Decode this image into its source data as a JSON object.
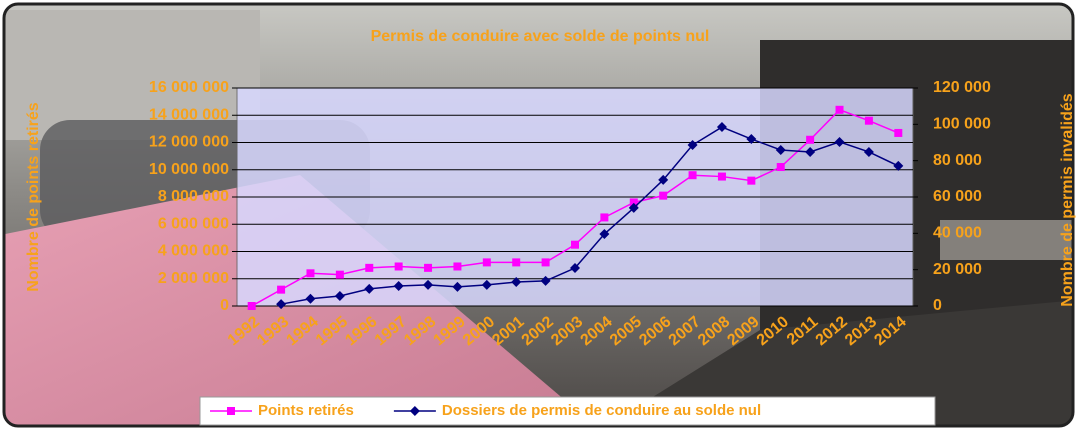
{
  "chart_data": {
    "type": "line",
    "title": "Permis de conduire avec solde de points nul",
    "y_label": "Nombre de points retirés",
    "y2_label": "Nombre de permis invalidés",
    "categories": [
      "1992",
      "1993",
      "1994",
      "1995",
      "1996",
      "1997",
      "1998",
      "1999",
      "2000",
      "2001",
      "2002",
      "2003",
      "2004",
      "2005",
      "2006",
      "2007",
      "2008",
      "2009",
      "2010",
      "2011",
      "2012",
      "2013",
      "2014"
    ],
    "series": [
      {
        "name": "Points retirés",
        "color": "#ff00ff",
        "marker": "square",
        "axis": "y",
        "values": [
          0,
          1200000,
          2400000,
          2300000,
          2800000,
          2900000,
          2800000,
          2900000,
          3200000,
          3200000,
          3200000,
          4500000,
          6500000,
          7600000,
          8100000,
          9600000,
          9500000,
          9200000,
          10200000,
          12200000,
          14400000,
          13600000,
          12700000
        ]
      },
      {
        "name": "Dossiers de permis de conduire au solde nul",
        "color": "#000080",
        "marker": "diamond",
        "axis": "y2",
        "values": [
          null,
          1000,
          4000,
          5500,
          9400,
          11000,
          11600,
          10500,
          11600,
          13200,
          13800,
          20900,
          39600,
          54000,
          69400,
          88600,
          98500,
          91900,
          85900,
          84800,
          90300,
          84800,
          77100
        ]
      }
    ],
    "ylim": [
      0,
      16000000
    ],
    "yticks": [
      0,
      {
        "value": 2000000,
        "label": "2 000 000"
      },
      {
        "value": 4000000,
        "label": "4 000 000"
      },
      {
        "value": 6000000,
        "label": "6 000 000"
      },
      {
        "value": 8000000,
        "label": "8 000 000"
      },
      {
        "value": 10000000,
        "label": "10 000 000"
      },
      {
        "value": 12000000,
        "label": "12 000 000"
      },
      {
        "value": 14000000,
        "label": "14 000 000"
      },
      {
        "value": 16000000,
        "label": "16 000 000"
      }
    ],
    "y2lim": [
      0,
      120000
    ],
    "y2ticks": [
      0,
      {
        "value": 20000,
        "label": "20 000"
      },
      {
        "value": 40000,
        "label": "40 000"
      },
      {
        "value": 60000,
        "label": "60 000"
      },
      {
        "value": 80000,
        "label": "80 000"
      },
      {
        "value": 100000,
        "label": "100 000"
      },
      {
        "value": 120000,
        "label": "120 000"
      }
    ],
    "grid": true,
    "legend": "bottom"
  }
}
